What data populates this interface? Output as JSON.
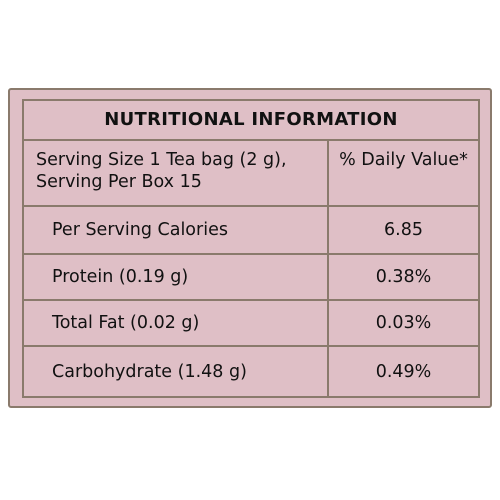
{
  "title": "NUTRITIONAL INFORMATION",
  "header": {
    "serving_line1": "Serving Size 1 Tea bag (2 g),",
    "serving_line2": "Serving Per Box 15",
    "daily_value": "% Daily Value*"
  },
  "rows": [
    {
      "label": "Per Serving Calories",
      "value": "6.85"
    },
    {
      "label": "Protein (0.19 g)",
      "value": "0.38%"
    },
    {
      "label": "Total Fat (0.02 g)",
      "value": "0.03%"
    },
    {
      "label": "Carbohydrate (1.48 g)",
      "value": "0.49%"
    }
  ],
  "colors": {
    "panel": "#dfbfc6",
    "border": "#8a7a6c"
  }
}
